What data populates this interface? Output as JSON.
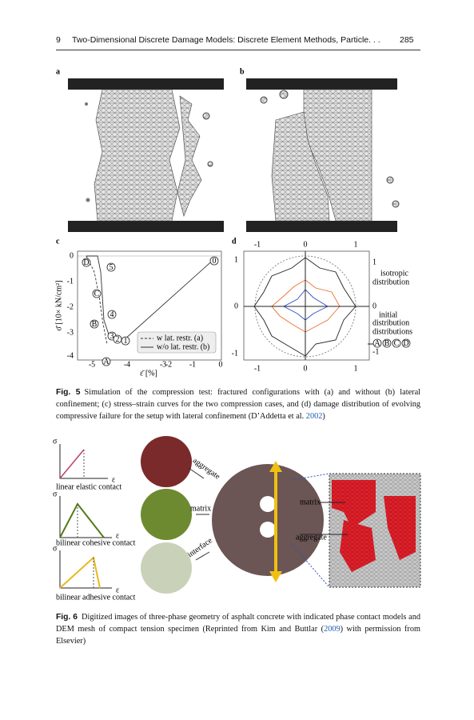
{
  "header": {
    "chapter": "9",
    "title": "Two-Dimensional Discrete Damage Models: Discrete Element Methods, Particle. . .",
    "page": "285"
  },
  "figure5": {
    "panel_labels": [
      "a",
      "b",
      "c",
      "d"
    ],
    "chart_c": {
      "yticks": [
        "0",
        "-1",
        "-2",
        "-3",
        "-4"
      ],
      "xticks": [
        "-5",
        "-4",
        "-3",
        "-2",
        "-1",
        "0"
      ],
      "ylabel": "σ̄ [10× kN/cm²]",
      "xlabel": "ε̄ [%]",
      "legend": [
        "w lat. restr. (a)",
        "w/o lat. restr. (b)"
      ],
      "point_labels": [
        "D",
        "5",
        "0",
        "C",
        "4",
        "B",
        "3",
        "2",
        "1",
        "A"
      ]
    },
    "chart_d": {
      "top_ticks": [
        "-1",
        "0",
        "1"
      ],
      "left_ticks": [
        "1",
        "0",
        "-1"
      ],
      "bottom_ticks": [
        "-1",
        "0",
        "1"
      ],
      "right_labels": [
        "1",
        "isotropic",
        "distribution",
        "0",
        "initial",
        "distribution",
        "distributions",
        "-1"
      ],
      "state_labels": [
        "A",
        "B",
        "C",
        "D"
      ]
    },
    "caption": {
      "label": "Fig. 5",
      "text": "Simulation of the compression test: fractured configurations with (a) and without (b) lateral confinement; (c) stress–strain curves for the two compression cases, and (d) damage distribution of evolving compressive failure for the setup with lateral confinement (D’Addetta et al. ",
      "citation": "2002",
      "end": ")"
    }
  },
  "figure6": {
    "stress_labels": [
      "σ",
      "σ",
      "σ"
    ],
    "strain_labels": [
      "ε",
      "ε",
      "ε"
    ],
    "contact_labels": [
      "linear elastic contact",
      "bilinear cohesive contact",
      "bilinear adhesive contact"
    ],
    "arrow_labels": [
      "aggregate",
      "matrix",
      "interface"
    ],
    "callouts": [
      "matrix",
      "aggregate"
    ],
    "caption": {
      "label": "Fig. 6",
      "text": "Digitized images of three-phase geometry of asphalt concrete with indicated phase contact models and DEM mesh of compact tension specimen (Reprinted from Kim and Buttlar (",
      "citation": "2009",
      "end": ") with permission from Elsevier)"
    }
  }
}
